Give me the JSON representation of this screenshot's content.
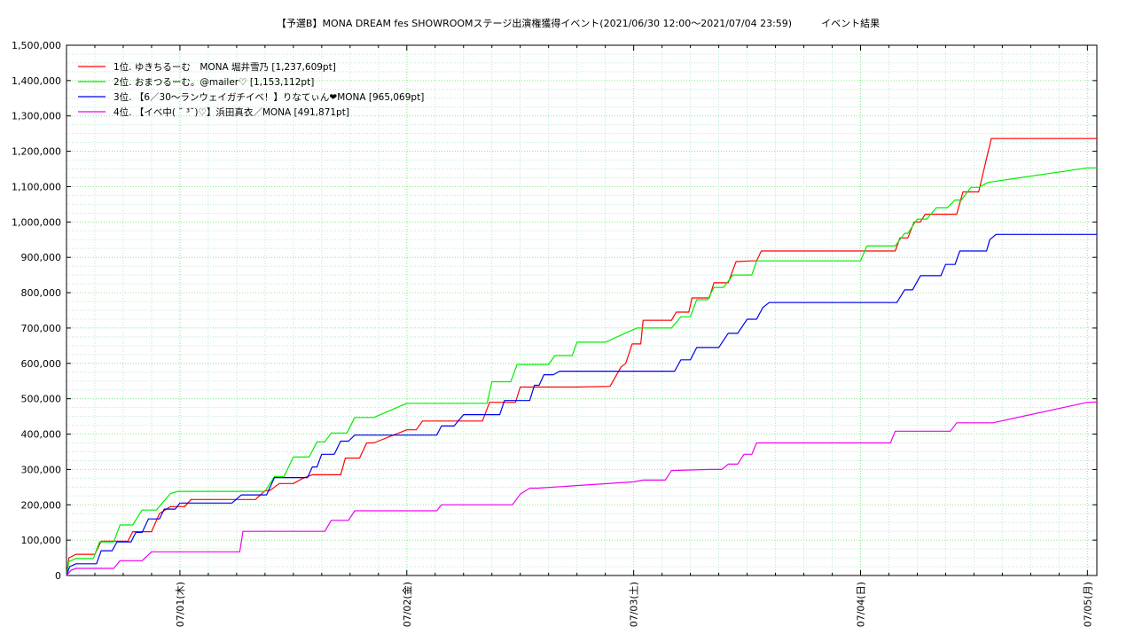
{
  "chart_data": {
    "type": "line",
    "title": "【予選B】MONA DREAM fes SHOWROOMステージ出演権獲得イベント(2021/06/30 12:00〜2021/07/04 23:59)　　　イベント結果",
    "xlabel": "",
    "ylabel": "",
    "x_range": [
      "2021-06-30 12:00",
      "2021-07-05 01:00"
    ],
    "ylim": [
      0,
      1500000
    ],
    "y_ticks": [
      0,
      100000,
      200000,
      300000,
      400000,
      500000,
      600000,
      700000,
      800000,
      900000,
      1000000,
      1100000,
      1200000,
      1300000,
      1400000,
      1500000
    ],
    "y_tick_labels": [
      "0",
      "100,000",
      "200,000",
      "300,000",
      "400,000",
      "500,000",
      "600,000",
      "700,000",
      "800,000",
      "900,000",
      "1,000,000",
      "1,100,000",
      "1,200,000",
      "1,300,000",
      "1,400,000",
      "1,500,000"
    ],
    "x_ticks": [
      "2021-07-01 00:00",
      "2021-07-02 00:00",
      "2021-07-03 00:00",
      "2021-07-04 00:00",
      "2021-07-05 00:00"
    ],
    "x_tick_labels": [
      "07/01(木)",
      "07/02(金)",
      "07/03(土)",
      "07/04(日)",
      "07/05(月)"
    ],
    "grid": true,
    "legend_position": "top-left",
    "series": [
      {
        "name": "1位. ゆきちるーむ　MONA 堀井雪乃 [1,237,609pt]",
        "color": "#ff0000",
        "points": [
          [
            "2021-06-30 12:00",
            0
          ],
          [
            "2021-06-30 12:15",
            50000
          ],
          [
            "2021-06-30 13:00",
            60000
          ],
          [
            "2021-06-30 15:00",
            60000
          ],
          [
            "2021-06-30 15:40",
            97000
          ],
          [
            "2021-06-30 18:30",
            97000
          ],
          [
            "2021-06-30 19:00",
            124000
          ],
          [
            "2021-06-30 21:00",
            124000
          ],
          [
            "2021-06-30 21:50",
            175000
          ],
          [
            "2021-06-30 23:00",
            195000
          ],
          [
            "2021-07-01 00:30",
            195000
          ],
          [
            "2021-07-01 01:10",
            215000
          ],
          [
            "2021-07-01 08:00",
            215000
          ],
          [
            "2021-07-01 09:00",
            240000
          ],
          [
            "2021-07-01 09:30",
            240000
          ],
          [
            "2021-07-01 10:30",
            260000
          ],
          [
            "2021-07-01 12:00",
            260000
          ],
          [
            "2021-07-01 13:00",
            275000
          ],
          [
            "2021-07-01 14:00",
            285000
          ],
          [
            "2021-07-01 17:00",
            285000
          ],
          [
            "2021-07-01 17:30",
            332000
          ],
          [
            "2021-07-01 19:00",
            332000
          ],
          [
            "2021-07-01 19:45",
            375000
          ],
          [
            "2021-07-01 20:30",
            375000
          ],
          [
            "2021-07-02 00:00",
            412000
          ],
          [
            "2021-07-02 01:00",
            412000
          ],
          [
            "2021-07-02 01:40",
            437000
          ],
          [
            "2021-07-02 08:00",
            437000
          ],
          [
            "2021-07-02 08:45",
            490000
          ],
          [
            "2021-07-02 11:30",
            490000
          ],
          [
            "2021-07-02 12:00",
            533000
          ],
          [
            "2021-07-02 18:00",
            533000
          ],
          [
            "2021-07-02 21:30",
            535000
          ],
          [
            "2021-07-02 22:40",
            590000
          ],
          [
            "2021-07-02 23:10",
            600000
          ],
          [
            "2021-07-02 23:50",
            655000
          ],
          [
            "2021-07-03 00:45",
            655000
          ],
          [
            "2021-07-03 01:00",
            722000
          ],
          [
            "2021-07-03 04:00",
            722000
          ],
          [
            "2021-07-03 04:30",
            745000
          ],
          [
            "2021-07-03 05:50",
            745000
          ],
          [
            "2021-07-03 06:10",
            785000
          ],
          [
            "2021-07-03 08:00",
            785000
          ],
          [
            "2021-07-03 08:30",
            828000
          ],
          [
            "2021-07-03 10:00",
            828000
          ],
          [
            "2021-07-03 10:50",
            888000
          ],
          [
            "2021-07-03 12:30",
            890000
          ],
          [
            "2021-07-03 13:00",
            890000
          ],
          [
            "2021-07-03 13:30",
            918000
          ],
          [
            "2021-07-04 03:40",
            918000
          ],
          [
            "2021-07-04 04:10",
            955000
          ],
          [
            "2021-07-04 05:00",
            955000
          ],
          [
            "2021-07-04 05:40",
            1000000
          ],
          [
            "2021-07-04 06:20",
            1000000
          ],
          [
            "2021-07-04 06:50",
            1022000
          ],
          [
            "2021-07-04 10:10",
            1022000
          ],
          [
            "2021-07-04 10:50",
            1085000
          ],
          [
            "2021-07-04 12:30",
            1085000
          ],
          [
            "2021-07-04 13:20",
            1180000
          ],
          [
            "2021-07-04 13:50",
            1236000
          ],
          [
            "2021-07-05 01:00",
            1236000
          ]
        ]
      },
      {
        "name": "2位. おまつるーむ。@mailer♡ [1,153,112pt]",
        "color": "#00ee00",
        "points": [
          [
            "2021-06-30 12:00",
            0
          ],
          [
            "2021-06-30 12:15",
            40000
          ],
          [
            "2021-06-30 13:00",
            48000
          ],
          [
            "2021-06-30 14:50",
            48000
          ],
          [
            "2021-06-30 15:30",
            95000
          ],
          [
            "2021-06-30 17:00",
            95000
          ],
          [
            "2021-06-30 17:40",
            143000
          ],
          [
            "2021-06-30 19:00",
            143000
          ],
          [
            "2021-06-30 20:00",
            185000
          ],
          [
            "2021-06-30 21:30",
            185000
          ],
          [
            "2021-06-30 23:00",
            232000
          ],
          [
            "2021-06-30 23:50",
            238000
          ],
          [
            "2021-07-01 04:00",
            238000
          ],
          [
            "2021-07-01 09:00",
            238000
          ],
          [
            "2021-07-01 10:00",
            280000
          ],
          [
            "2021-07-01 11:00",
            280000
          ],
          [
            "2021-07-01 12:00",
            335000
          ],
          [
            "2021-07-01 13:40",
            335000
          ],
          [
            "2021-07-01 14:30",
            378000
          ],
          [
            "2021-07-01 15:20",
            378000
          ],
          [
            "2021-07-01 16:00",
            403000
          ],
          [
            "2021-07-01 17:40",
            403000
          ],
          [
            "2021-07-01 18:30",
            447000
          ],
          [
            "2021-07-01 20:30",
            447000
          ],
          [
            "2021-07-02 00:00",
            487000
          ],
          [
            "2021-07-02 06:00",
            487000
          ],
          [
            "2021-07-02 08:30",
            487000
          ],
          [
            "2021-07-02 09:00",
            548000
          ],
          [
            "2021-07-02 11:00",
            548000
          ],
          [
            "2021-07-02 11:40",
            597000
          ],
          [
            "2021-07-02 15:00",
            597000
          ],
          [
            "2021-07-02 15:40",
            622000
          ],
          [
            "2021-07-02 17:30",
            622000
          ],
          [
            "2021-07-02 18:00",
            660000
          ],
          [
            "2021-07-02 21:00",
            660000
          ],
          [
            "2021-07-03 00:20",
            700000
          ],
          [
            "2021-07-03 04:00",
            700000
          ],
          [
            "2021-07-03 05:00",
            732000
          ],
          [
            "2021-07-03 06:00",
            732000
          ],
          [
            "2021-07-03 06:40",
            780000
          ],
          [
            "2021-07-03 07:50",
            780000
          ],
          [
            "2021-07-03 08:30",
            815000
          ],
          [
            "2021-07-03 09:30",
            815000
          ],
          [
            "2021-07-03 10:30",
            850000
          ],
          [
            "2021-07-03 12:30",
            850000
          ],
          [
            "2021-07-03 13:00",
            890000
          ],
          [
            "2021-07-04 00:00",
            890000
          ],
          [
            "2021-07-04 00:40",
            932000
          ],
          [
            "2021-07-04 03:40",
            932000
          ],
          [
            "2021-07-04 04:40",
            968000
          ],
          [
            "2021-07-04 05:00",
            968000
          ],
          [
            "2021-07-04 06:00",
            1008000
          ],
          [
            "2021-07-04 07:00",
            1008000
          ],
          [
            "2021-07-04 08:00",
            1040000
          ],
          [
            "2021-07-04 09:10",
            1040000
          ],
          [
            "2021-07-04 10:00",
            1062000
          ],
          [
            "2021-07-04 10:40",
            1062000
          ],
          [
            "2021-07-04 11:40",
            1098000
          ],
          [
            "2021-07-04 12:30",
            1098000
          ],
          [
            "2021-07-04 13:30",
            1112000
          ],
          [
            "2021-07-05 00:00",
            1153000
          ],
          [
            "2021-07-05 01:00",
            1153000
          ]
        ]
      },
      {
        "name": "3位. 【6／30〜ランウェイガチイベ！】りなてぃん❤MONA [965,069pt]",
        "color": "#0000ee",
        "points": [
          [
            "2021-06-30 12:00",
            0
          ],
          [
            "2021-06-30 12:20",
            25000
          ],
          [
            "2021-06-30 13:00",
            33000
          ],
          [
            "2021-06-30 15:10",
            33000
          ],
          [
            "2021-06-30 15:40",
            70000
          ],
          [
            "2021-06-30 16:50",
            70000
          ],
          [
            "2021-06-30 17:20",
            95000
          ],
          [
            "2021-06-30 18:50",
            95000
          ],
          [
            "2021-06-30 19:20",
            122000
          ],
          [
            "2021-06-30 20:00",
            122000
          ],
          [
            "2021-06-30 20:40",
            160000
          ],
          [
            "2021-06-30 21:50",
            160000
          ],
          [
            "2021-06-30 22:20",
            188000
          ],
          [
            "2021-06-30 23:30",
            188000
          ],
          [
            "2021-07-01 00:00",
            205000
          ],
          [
            "2021-07-01 01:00",
            205000
          ],
          [
            "2021-07-01 05:30",
            205000
          ],
          [
            "2021-07-01 06:30",
            228000
          ],
          [
            "2021-07-01 08:00",
            228000
          ],
          [
            "2021-07-01 09:10",
            228000
          ],
          [
            "2021-07-01 10:00",
            277000
          ],
          [
            "2021-07-01 12:30",
            277000
          ],
          [
            "2021-07-01 13:30",
            277000
          ],
          [
            "2021-07-01 14:00",
            307000
          ],
          [
            "2021-07-01 14:30",
            307000
          ],
          [
            "2021-07-01 15:00",
            343000
          ],
          [
            "2021-07-01 16:20",
            343000
          ],
          [
            "2021-07-01 17:00",
            380000
          ],
          [
            "2021-07-01 17:50",
            380000
          ],
          [
            "2021-07-01 18:30",
            397000
          ],
          [
            "2021-07-02 00:00",
            397000
          ],
          [
            "2021-07-02 03:10",
            397000
          ],
          [
            "2021-07-02 03:40",
            423000
          ],
          [
            "2021-07-02 05:00",
            423000
          ],
          [
            "2021-07-02 06:00",
            455000
          ],
          [
            "2021-07-02 09:50",
            455000
          ],
          [
            "2021-07-02 10:20",
            495000
          ],
          [
            "2021-07-02 13:00",
            495000
          ],
          [
            "2021-07-02 13:30",
            538000
          ],
          [
            "2021-07-02 14:00",
            538000
          ],
          [
            "2021-07-02 14:30",
            568000
          ],
          [
            "2021-07-02 15:30",
            568000
          ],
          [
            "2021-07-02 16:10",
            578000
          ],
          [
            "2021-07-03 01:00",
            578000
          ],
          [
            "2021-07-03 04:20",
            578000
          ],
          [
            "2021-07-03 05:00",
            610000
          ],
          [
            "2021-07-03 06:00",
            610000
          ],
          [
            "2021-07-03 06:40",
            645000
          ],
          [
            "2021-07-03 09:00",
            645000
          ],
          [
            "2021-07-03 10:00",
            685000
          ],
          [
            "2021-07-03 11:00",
            685000
          ],
          [
            "2021-07-03 12:00",
            725000
          ],
          [
            "2021-07-03 13:00",
            725000
          ],
          [
            "2021-07-03 13:40",
            758000
          ],
          [
            "2021-07-03 14:20",
            772000
          ],
          [
            "2021-07-04 00:00",
            772000
          ],
          [
            "2021-07-04 03:50",
            772000
          ],
          [
            "2021-07-04 04:40",
            808000
          ],
          [
            "2021-07-04 05:30",
            808000
          ],
          [
            "2021-07-04 06:20",
            848000
          ],
          [
            "2021-07-04 08:30",
            848000
          ],
          [
            "2021-07-04 09:00",
            880000
          ],
          [
            "2021-07-04 10:00",
            880000
          ],
          [
            "2021-07-04 10:30",
            918000
          ],
          [
            "2021-07-04 13:20",
            918000
          ],
          [
            "2021-07-04 13:40",
            950000
          ],
          [
            "2021-07-04 14:20",
            965000
          ],
          [
            "2021-07-05 01:00",
            965000
          ]
        ]
      },
      {
        "name": "4位. 【イベ中( ˘ ³˘)♡】浜田真衣／MONA [491,871pt]",
        "color": "#ee00ee",
        "points": [
          [
            "2021-06-30 12:00",
            0
          ],
          [
            "2021-06-30 12:30",
            15000
          ],
          [
            "2021-06-30 13:00",
            20000
          ],
          [
            "2021-06-30 17:00",
            20000
          ],
          [
            "2021-06-30 17:40",
            42000
          ],
          [
            "2021-06-30 20:00",
            42000
          ],
          [
            "2021-06-30 21:00",
            67000
          ],
          [
            "2021-07-01 06:20",
            67000
          ],
          [
            "2021-07-01 06:40",
            125000
          ],
          [
            "2021-07-01 15:20",
            125000
          ],
          [
            "2021-07-01 16:00",
            156000
          ],
          [
            "2021-07-01 17:50",
            156000
          ],
          [
            "2021-07-01 18:30",
            183000
          ],
          [
            "2021-07-02 00:00",
            183000
          ],
          [
            "2021-07-02 03:10",
            183000
          ],
          [
            "2021-07-02 03:40",
            200000
          ],
          [
            "2021-07-02 08:00",
            200000
          ],
          [
            "2021-07-02 11:10",
            200000
          ],
          [
            "2021-07-02 12:00",
            230000
          ],
          [
            "2021-07-02 13:00",
            247000
          ],
          [
            "2021-07-02 13:50",
            247000
          ],
          [
            "2021-07-03 00:00",
            265000
          ],
          [
            "2021-07-03 01:00",
            270000
          ],
          [
            "2021-07-03 03:20",
            270000
          ],
          [
            "2021-07-03 04:00",
            297000
          ],
          [
            "2021-07-03 08:00",
            300000
          ],
          [
            "2021-07-03 09:20",
            300000
          ],
          [
            "2021-07-03 10:00",
            315000
          ],
          [
            "2021-07-03 11:00",
            315000
          ],
          [
            "2021-07-03 11:40",
            343000
          ],
          [
            "2021-07-03 12:30",
            343000
          ],
          [
            "2021-07-03 13:00",
            375000
          ],
          [
            "2021-07-04 03:10",
            375000
          ],
          [
            "2021-07-04 03:40",
            408000
          ],
          [
            "2021-07-04 05:00",
            408000
          ],
          [
            "2021-07-04 09:30",
            408000
          ],
          [
            "2021-07-04 10:10",
            432000
          ],
          [
            "2021-07-04 12:30",
            432000
          ],
          [
            "2021-07-04 14:00",
            432000
          ],
          [
            "2021-07-05 00:00",
            490000
          ],
          [
            "2021-07-05 01:00",
            491000
          ]
        ]
      }
    ]
  }
}
